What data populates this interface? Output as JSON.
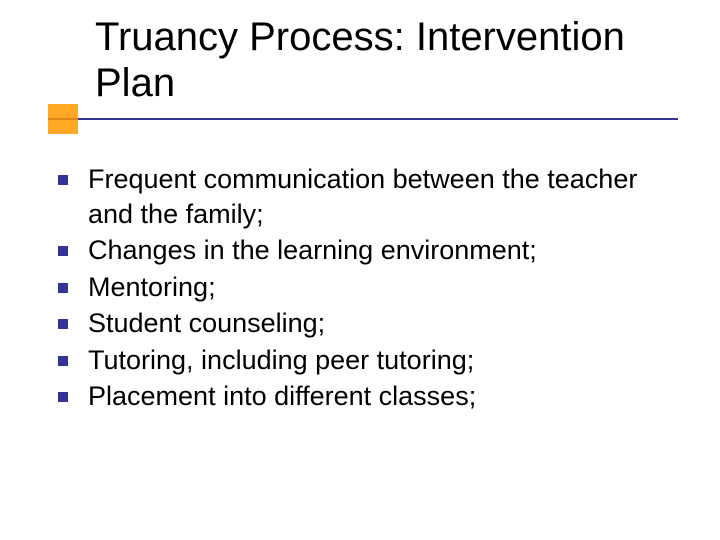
{
  "title": "Truancy Process: Intervention Plan",
  "bullets": [
    "Frequent communication between the teacher and the family;",
    "Changes in the learning environment;",
    "Mentoring;",
    "Student counseling;",
    "Tutoring, including peer tutoring;",
    "Placement into different classes;"
  ],
  "style": {
    "background_color": "#ffffff",
    "title_color": "#000000",
    "title_fontsize": 40,
    "body_color": "#000000",
    "body_fontsize": 27,
    "accent_line_color": "#333399",
    "accent_square_color": "#ff9900",
    "bullet_marker_color": "#333399",
    "bullet_marker_size": 10,
    "font_family": "Verdana"
  }
}
